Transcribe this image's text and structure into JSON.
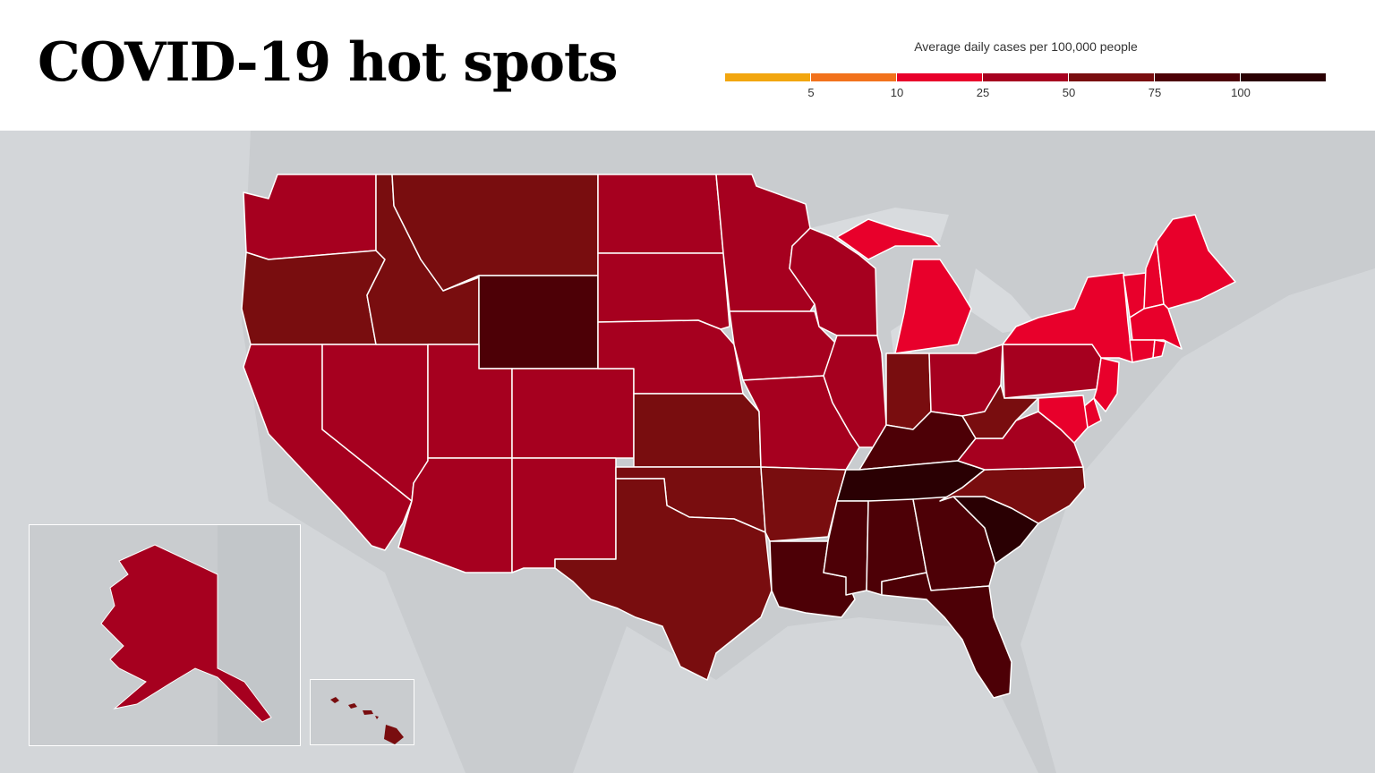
{
  "header": {
    "title": "COVID-19 hot spots"
  },
  "legend": {
    "title": "Average daily cases per 100,000 people",
    "ticks": [
      "5",
      "10",
      "25",
      "50",
      "75",
      "100"
    ],
    "bins": [
      {
        "label": "0-5",
        "color": "#f2a60f"
      },
      {
        "label": "5-10",
        "color": "#f2721c"
      },
      {
        "label": "10-25",
        "color": "#e8002b"
      },
      {
        "label": "25-50",
        "color": "#a6001f"
      },
      {
        "label": "50-75",
        "color": "#790d0f"
      },
      {
        "label": "75-100",
        "color": "#4d0006"
      },
      {
        "label": "100+",
        "color": "#2a0003"
      }
    ]
  },
  "map": {
    "land_color": "#c9cccf",
    "states": [
      {
        "name": "Washington",
        "bin": "25-50"
      },
      {
        "name": "Oregon",
        "bin": "50-75"
      },
      {
        "name": "California",
        "bin": "25-50"
      },
      {
        "name": "Nevada",
        "bin": "25-50"
      },
      {
        "name": "Idaho",
        "bin": "50-75"
      },
      {
        "name": "Montana",
        "bin": "50-75"
      },
      {
        "name": "Wyoming",
        "bin": "75-100"
      },
      {
        "name": "Utah",
        "bin": "25-50"
      },
      {
        "name": "Arizona",
        "bin": "25-50"
      },
      {
        "name": "Colorado",
        "bin": "25-50"
      },
      {
        "name": "New Mexico",
        "bin": "25-50"
      },
      {
        "name": "North Dakota",
        "bin": "25-50"
      },
      {
        "name": "South Dakota",
        "bin": "25-50"
      },
      {
        "name": "Nebraska",
        "bin": "25-50"
      },
      {
        "name": "Kansas",
        "bin": "50-75"
      },
      {
        "name": "Oklahoma",
        "bin": "50-75"
      },
      {
        "name": "Texas",
        "bin": "50-75"
      },
      {
        "name": "Minnesota",
        "bin": "25-50"
      },
      {
        "name": "Iowa",
        "bin": "25-50"
      },
      {
        "name": "Missouri",
        "bin": "25-50"
      },
      {
        "name": "Arkansas",
        "bin": "50-75"
      },
      {
        "name": "Louisiana",
        "bin": "75-100"
      },
      {
        "name": "Wisconsin",
        "bin": "25-50"
      },
      {
        "name": "Illinois",
        "bin": "25-50"
      },
      {
        "name": "Michigan",
        "bin": "10-25"
      },
      {
        "name": "Indiana",
        "bin": "50-75"
      },
      {
        "name": "Ohio",
        "bin": "25-50"
      },
      {
        "name": "Kentucky",
        "bin": "75-100"
      },
      {
        "name": "Tennessee",
        "bin": "100+"
      },
      {
        "name": "Mississippi",
        "bin": "75-100"
      },
      {
        "name": "Alabama",
        "bin": "75-100"
      },
      {
        "name": "Georgia",
        "bin": "75-100"
      },
      {
        "name": "Florida",
        "bin": "75-100"
      },
      {
        "name": "South Carolina",
        "bin": "100+"
      },
      {
        "name": "North Carolina",
        "bin": "50-75"
      },
      {
        "name": "Virginia",
        "bin": "25-50"
      },
      {
        "name": "West Virginia",
        "bin": "50-75"
      },
      {
        "name": "Pennsylvania",
        "bin": "25-50"
      },
      {
        "name": "New York",
        "bin": "10-25"
      },
      {
        "name": "Vermont",
        "bin": "10-25"
      },
      {
        "name": "New Hampshire",
        "bin": "10-25"
      },
      {
        "name": "Maine",
        "bin": "10-25"
      },
      {
        "name": "Massachusetts",
        "bin": "10-25"
      },
      {
        "name": "Connecticut",
        "bin": "10-25"
      },
      {
        "name": "Rhode Island",
        "bin": "10-25"
      },
      {
        "name": "New Jersey",
        "bin": "10-25"
      },
      {
        "name": "Delaware",
        "bin": "10-25"
      },
      {
        "name": "Maryland",
        "bin": "10-25"
      },
      {
        "name": "Alaska",
        "bin": "25-50"
      },
      {
        "name": "Hawaii",
        "bin": "50-75"
      }
    ]
  }
}
